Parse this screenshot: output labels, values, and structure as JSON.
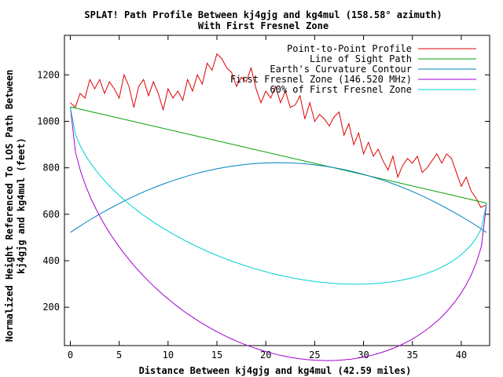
{
  "chart_data": {
    "type": "line",
    "title_line1": "SPLAT! Path Profile Between kj4gjg and kg4mul (158.58° azimuth)",
    "title_line2": "With First Fresnel Zone",
    "xlabel": "Distance Between kj4gjg and kg4mul (42.59 miles)",
    "ylabel_line1": "Normalized Height Referenced To LOS Path Between",
    "ylabel_line2": "kj4gjg and kg4mul (feet)",
    "xlim": [
      -0.6,
      42.9
    ],
    "ylim": [
      35,
      1370
    ],
    "x_ticks": [
      0,
      5,
      10,
      15,
      20,
      25,
      30,
      35,
      40
    ],
    "y_ticks": [
      200,
      400,
      600,
      800,
      1000,
      1200
    ],
    "grid": false,
    "legend_position": "top-right",
    "path_length": 42.59,
    "series": [
      {
        "name": "Point-to-Point Profile",
        "color": "#dd0000",
        "x": [
          0.0,
          0.5,
          1.0,
          1.5,
          2.0,
          2.5,
          3.0,
          3.5,
          4.0,
          4.5,
          5.0,
          5.5,
          6.0,
          6.5,
          7.0,
          7.5,
          8.0,
          8.5,
          9.0,
          9.5,
          10.0,
          10.5,
          11.0,
          11.5,
          12.0,
          12.5,
          13.0,
          13.5,
          14.0,
          14.5,
          15.0,
          15.5,
          16.0,
          16.5,
          17.0,
          17.5,
          18.0,
          18.5,
          19.0,
          19.5,
          20.0,
          20.5,
          21.0,
          21.5,
          22.0,
          22.5,
          23.0,
          23.5,
          24.0,
          24.5,
          25.0,
          25.5,
          26.0,
          26.5,
          27.0,
          27.5,
          28.0,
          28.5,
          29.0,
          29.5,
          30.0,
          30.5,
          31.0,
          31.5,
          32.0,
          32.5,
          33.0,
          33.5,
          34.0,
          34.5,
          35.0,
          35.5,
          36.0,
          36.5,
          37.0,
          37.5,
          38.0,
          38.5,
          39.0,
          39.5,
          40.0,
          40.5,
          41.0,
          41.5,
          42.0,
          42.59
        ],
        "y": [
          1080,
          1060,
          1120,
          1100,
          1180,
          1140,
          1180,
          1120,
          1170,
          1140,
          1100,
          1200,
          1150,
          1060,
          1150,
          1180,
          1110,
          1170,
          1120,
          1050,
          1140,
          1100,
          1130,
          1090,
          1180,
          1130,
          1200,
          1160,
          1250,
          1220,
          1290,
          1270,
          1230,
          1210,
          1150,
          1190,
          1170,
          1230,
          1140,
          1080,
          1130,
          1100,
          1150,
          1080,
          1130,
          1060,
          1070,
          1110,
          1010,
          1080,
          1000,
          1030,
          1010,
          980,
          1020,
          1040,
          940,
          990,
          900,
          950,
          860,
          910,
          850,
          880,
          830,
          790,
          850,
          760,
          810,
          840,
          820,
          850,
          780,
          800,
          830,
          860,
          820,
          860,
          840,
          780,
          720,
          760,
          700,
          670,
          630,
          640
        ]
      },
      {
        "name": "Line of Sight Path",
        "color": "#00a000",
        "x": [
          0.0,
          42.59
        ],
        "y": [
          1062,
          648
        ]
      },
      {
        "name": "Earth's Curvature Contour",
        "color": "#0080c0",
        "x": [
          0.0,
          21.3,
          42.59
        ],
        "y": [
          522,
          822,
          522
        ]
      },
      {
        "name": "First Fresnel Zone (146.520 MHz)",
        "color": "#a000d0",
        "fresnel_fraction": 1.0,
        "x": [
          0.0,
          42.59
        ],
        "y": [
          1062,
          648
        ]
      },
      {
        "name": "60% of First Fresnel Zone",
        "color": "#00d0d0",
        "fresnel_fraction": 0.6,
        "x": [
          0.0,
          42.59
        ],
        "y": [
          1062,
          648
        ]
      }
    ]
  }
}
